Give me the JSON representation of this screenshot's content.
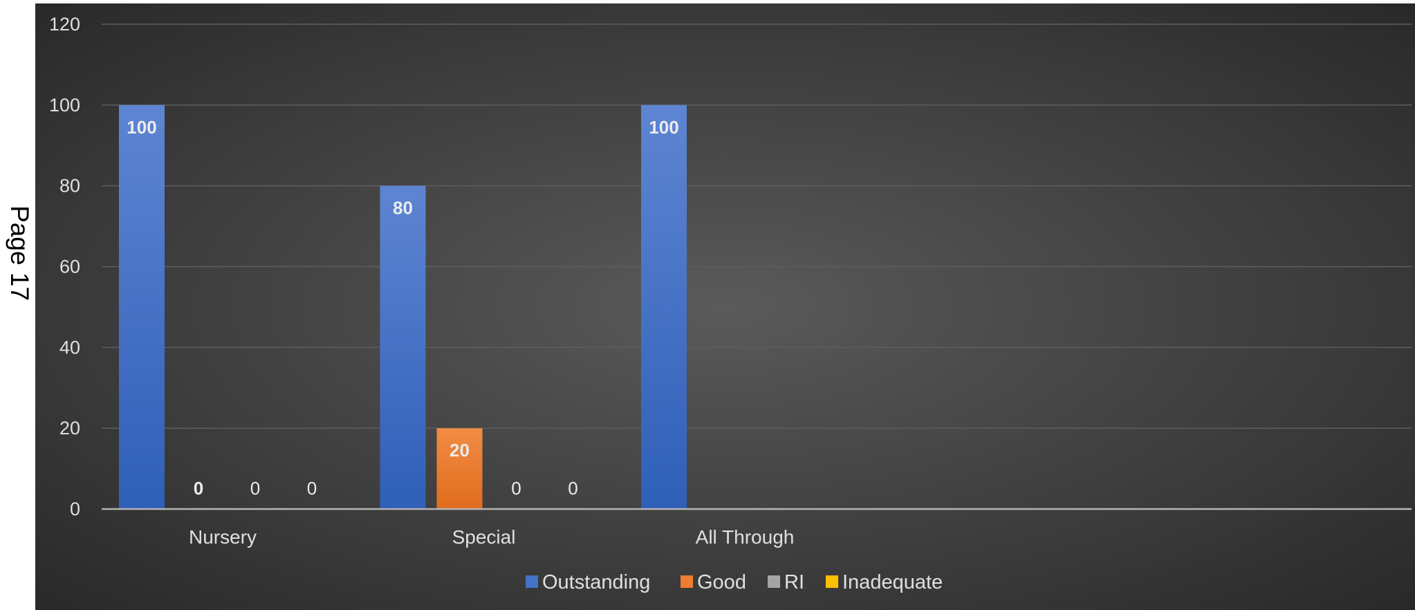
{
  "page_label": "Page 17",
  "colors": {
    "background_center": "#5a5a5a",
    "background_edge": "#262626",
    "gridline": "#5e5e5e",
    "axis": "#b5b5b5"
  },
  "chart_data": {
    "type": "bar",
    "title": "",
    "xlabel": "",
    "ylabel": "",
    "ylim": [
      0,
      120
    ],
    "yticks": [
      0,
      20,
      40,
      60,
      80,
      100,
      120
    ],
    "grid": true,
    "legend_position": "bottom",
    "categories": [
      "Nursery",
      "Special",
      "All Through"
    ],
    "series": [
      {
        "name": "Outstanding",
        "color": "#4472c4",
        "values": [
          100,
          80,
          100
        ],
        "labels": [
          "100",
          "80",
          "100"
        ],
        "label_bold": [
          true,
          true,
          true
        ]
      },
      {
        "name": "Good",
        "color": "#ed7d31",
        "values": [
          0,
          20,
          null
        ],
        "labels": [
          "0",
          "20",
          ""
        ],
        "label_bold": [
          true,
          true,
          false
        ]
      },
      {
        "name": "RI",
        "color": "#a5a5a5",
        "values": [
          0,
          0,
          null
        ],
        "labels": [
          "0",
          "0",
          ""
        ],
        "label_bold": [
          false,
          false,
          false
        ]
      },
      {
        "name": "Inadequate",
        "color": "#ffc000",
        "values": [
          0,
          0,
          null
        ],
        "labels": [
          "0",
          "0",
          ""
        ],
        "label_bold": [
          false,
          false,
          false
        ]
      }
    ]
  }
}
